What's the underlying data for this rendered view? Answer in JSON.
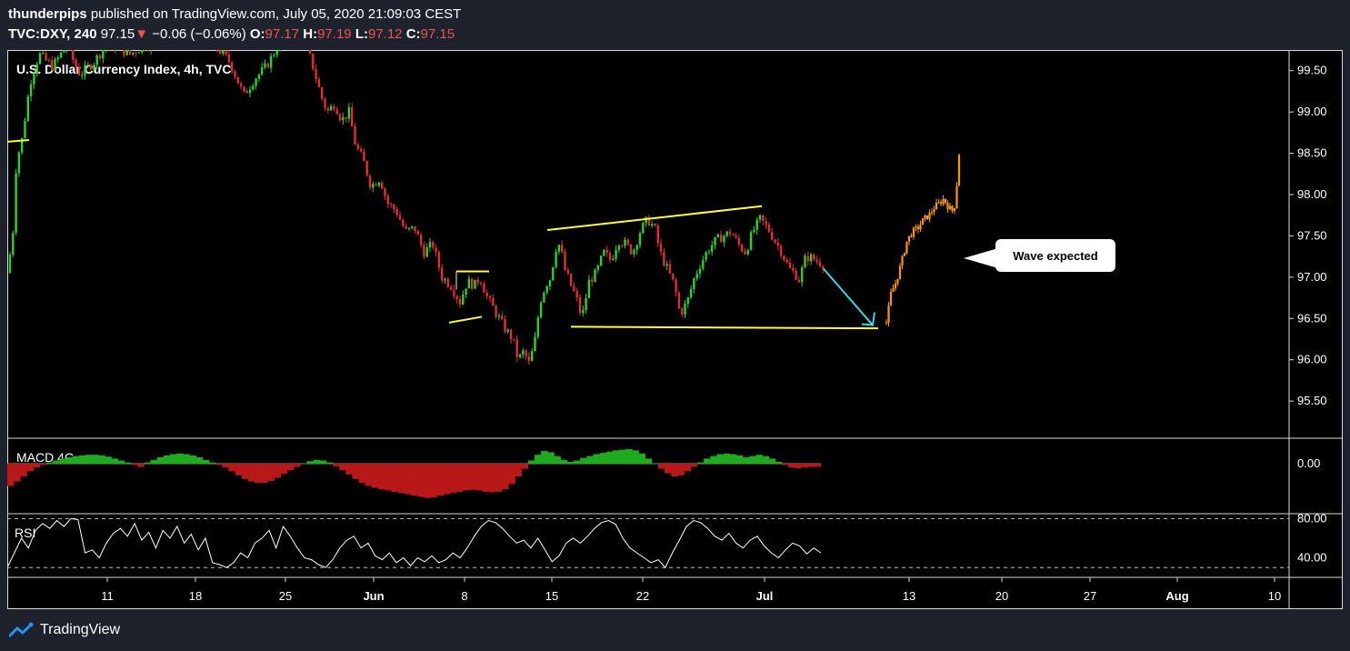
{
  "header": {
    "author": "thunderpips",
    "published_text": "published on TradingView.com, July 05, 2020 21:09:03 CEST",
    "symbol": "TVC:DXY, 240",
    "last_price": "97.15",
    "change_arrow": "▼",
    "change": "−0.06 (−0.06%)",
    "open_label": "O:",
    "open": "97.17",
    "high_label": "H:",
    "high": "97.19",
    "low_label": "L:",
    "low": "97.12",
    "close_label": "C:",
    "close": "97.15"
  },
  "footer": {
    "brand": "TradingView",
    "logo_icon": "tradingview-logo-icon"
  },
  "colors": {
    "up": "#26a69a",
    "up_candle": "#2bd22b",
    "down_candle": "#e0302e",
    "trendline": "#ffff3c",
    "arrow": "#3ad6e6",
    "projection": "#ff9800",
    "macd_up": "#1faa1f",
    "macd_down": "#b81818",
    "rsi": "#ffffff"
  },
  "chart_data": [
    {
      "type": "candlestick",
      "title": "U.S. Dollar Currency Index, 4h, TVC",
      "ylim": [
        95.05,
        99.75
      ],
      "y_ticks": [
        "99.50",
        "99.00",
        "98.50",
        "98.00",
        "97.50",
        "97.00",
        "96.50",
        "96.00",
        "95.50"
      ],
      "x_ticks": [
        "11",
        "18",
        "25",
        "Jun",
        "8",
        "15",
        "22",
        "Jul",
        "13",
        "20",
        "27",
        "Aug",
        "10"
      ],
      "x_ticks_bold": [
        "Jun",
        "Jul",
        "Aug"
      ],
      "close_path": [
        [
          0,
          97.05
        ],
        [
          6,
          97.5
        ],
        [
          10,
          98.4
        ],
        [
          16,
          98.65
        ],
        [
          25,
          99.35
        ],
        [
          35,
          99.7
        ],
        [
          50,
          99.55
        ],
        [
          65,
          99.8
        ],
        [
          80,
          99.45
        ],
        [
          95,
          99.6
        ],
        [
          108,
          99.8
        ],
        [
          118,
          99.8
        ],
        [
          135,
          99.7
        ],
        [
          150,
          99.8
        ],
        [
          175,
          99.85
        ],
        [
          200,
          99.9
        ],
        [
          225,
          99.85
        ],
        [
          245,
          99.6
        ],
        [
          260,
          99.2
        ],
        [
          272,
          99.4
        ],
        [
          285,
          99.55
        ],
        [
          300,
          99.85
        ],
        [
          315,
          100.0
        ],
        [
          325,
          99.9
        ],
        [
          335,
          99.6
        ],
        [
          345,
          99.2
        ],
        [
          352,
          99.0
        ],
        [
          360,
          99.1
        ],
        [
          368,
          98.9
        ],
        [
          376,
          99.0
        ],
        [
          383,
          98.6
        ],
        [
          392,
          98.4
        ],
        [
          400,
          98.1
        ],
        [
          410,
          98.2
        ],
        [
          418,
          97.9
        ],
        [
          428,
          97.8
        ],
        [
          438,
          97.55
        ],
        [
          448,
          97.6
        ],
        [
          458,
          97.3
        ],
        [
          468,
          97.4
        ],
        [
          478,
          97.0
        ],
        [
          488,
          96.9
        ],
        [
          498,
          96.7
        ],
        [
          506,
          96.95
        ],
        [
          514,
          96.9
        ],
        [
          520,
          97.0
        ],
        [
          528,
          96.75
        ],
        [
          536,
          96.6
        ],
        [
          546,
          96.4
        ],
        [
          556,
          96.25
        ],
        [
          562,
          96.0
        ],
        [
          568,
          96.1
        ],
        [
          574,
          95.95
        ],
        [
          580,
          96.2
        ],
        [
          586,
          96.7
        ],
        [
          592,
          96.9
        ],
        [
          598,
          97.0
        ],
        [
          603,
          97.35
        ],
        [
          608,
          97.4
        ],
        [
          613,
          97.1
        ],
        [
          620,
          96.9
        ],
        [
          626,
          96.75
        ],
        [
          632,
          96.5
        ],
        [
          640,
          96.95
        ],
        [
          648,
          97.05
        ],
        [
          656,
          97.3
        ],
        [
          664,
          97.2
        ],
        [
          672,
          97.45
        ],
        [
          680,
          97.4
        ],
        [
          688,
          97.3
        ],
        [
          696,
          97.55
        ],
        [
          704,
          97.7
        ],
        [
          712,
          97.6
        ],
        [
          718,
          97.3
        ],
        [
          726,
          97.1
        ],
        [
          734,
          96.9
        ],
        [
          740,
          96.55
        ],
        [
          748,
          96.7
        ],
        [
          756,
          97.0
        ],
        [
          764,
          97.2
        ],
        [
          772,
          97.35
        ],
        [
          780,
          97.45
        ],
        [
          788,
          97.5
        ],
        [
          796,
          97.55
        ],
        [
          804,
          97.4
        ],
        [
          812,
          97.3
        ],
        [
          820,
          97.55
        ],
        [
          828,
          97.7
        ],
        [
          836,
          97.6
        ],
        [
          844,
          97.45
        ],
        [
          852,
          97.3
        ],
        [
          860,
          97.1
        ],
        [
          866,
          97.05
        ],
        [
          872,
          96.95
        ],
        [
          876,
          97.2
        ],
        [
          882,
          97.25
        ],
        [
          890,
          97.2
        ],
        [
          898,
          97.15
        ]
      ],
      "projection_path": [
        [
          967,
          96.45
        ],
        [
          972,
          96.8
        ],
        [
          978,
          96.95
        ],
        [
          984,
          97.2
        ],
        [
          990,
          97.45
        ],
        [
          996,
          97.55
        ],
        [
          1002,
          97.6
        ],
        [
          1008,
          97.7
        ],
        [
          1014,
          97.75
        ],
        [
          1020,
          97.85
        ],
        [
          1026,
          97.9
        ],
        [
          1030,
          97.95
        ],
        [
          1035,
          97.85
        ],
        [
          1040,
          97.8
        ],
        [
          1043,
          97.9
        ],
        [
          1045,
          98.2
        ],
        [
          1047,
          98.5
        ]
      ],
      "annotation": "Wave expected"
    },
    {
      "type": "bar",
      "title": "MACD 4C",
      "y_ticks": [
        "0.00"
      ],
      "values": [
        -0.35,
        -0.28,
        -0.2,
        -0.12,
        -0.06,
        -0.02,
        0.02,
        0.05,
        0.08,
        0.1,
        0.12,
        0.13,
        0.14,
        0.14,
        0.13,
        0.11,
        0.08,
        0.05,
        0.02,
        -0.02,
        -0.05,
        0.02,
        0.06,
        0.1,
        0.13,
        0.15,
        0.16,
        0.15,
        0.13,
        0.1,
        0.06,
        0.02,
        -0.02,
        -0.06,
        -0.12,
        -0.18,
        -0.24,
        -0.28,
        -0.3,
        -0.3,
        -0.27,
        -0.22,
        -0.16,
        -0.1,
        -0.05,
        0.0,
        0.04,
        0.06,
        0.05,
        0.02,
        -0.04,
        -0.1,
        -0.17,
        -0.24,
        -0.3,
        -0.35,
        -0.38,
        -0.4,
        -0.42,
        -0.44,
        -0.46,
        -0.48,
        -0.5,
        -0.52,
        -0.54,
        -0.53,
        -0.5,
        -0.48,
        -0.46,
        -0.44,
        -0.42,
        -0.41,
        -0.42,
        -0.44,
        -0.45,
        -0.44,
        -0.4,
        -0.32,
        -0.2,
        -0.08,
        0.05,
        0.14,
        0.2,
        0.18,
        0.12,
        0.06,
        0.03,
        0.05,
        0.09,
        0.12,
        0.15,
        0.17,
        0.19,
        0.21,
        0.22,
        0.23,
        0.21,
        0.16,
        0.08,
        0.0,
        -0.08,
        -0.15,
        -0.2,
        -0.18,
        -0.12,
        -0.05,
        0.02,
        0.08,
        0.12,
        0.15,
        0.16,
        0.15,
        0.13,
        0.1,
        0.12,
        0.14,
        0.12,
        0.08,
        0.03,
        -0.02,
        -0.06,
        -0.07,
        -0.06,
        -0.05,
        -0.05
      ]
    },
    {
      "type": "line",
      "title": "RSI",
      "y_ticks": [
        "80.00",
        "40.00"
      ],
      "ylim": [
        20,
        85
      ],
      "bands": [
        80,
        30
      ],
      "values": [
        30,
        45,
        60,
        50,
        68,
        75,
        70,
        78,
        72,
        80,
        79,
        45,
        48,
        40,
        55,
        65,
        70,
        62,
        75,
        58,
        66,
        50,
        68,
        60,
        72,
        55,
        64,
        48,
        60,
        35,
        33,
        30,
        35,
        45,
        40,
        55,
        60,
        68,
        50,
        72,
        62,
        50,
        40,
        38,
        33,
        30,
        38,
        50,
        58,
        62,
        50,
        55,
        42,
        38,
        45,
        35,
        40,
        32,
        40,
        36,
        42,
        35,
        38,
        45,
        40,
        50,
        62,
        72,
        78,
        76,
        70,
        62,
        55,
        58,
        50,
        60,
        48,
        36,
        42,
        55,
        60,
        55,
        62,
        70,
        76,
        78,
        74,
        60,
        50,
        45,
        40,
        35,
        38,
        30,
        45,
        58,
        72,
        78,
        76,
        70,
        62,
        58,
        65,
        55,
        50,
        58,
        62,
        52,
        45,
        40,
        48,
        55,
        52,
        44,
        50,
        45
      ]
    }
  ]
}
